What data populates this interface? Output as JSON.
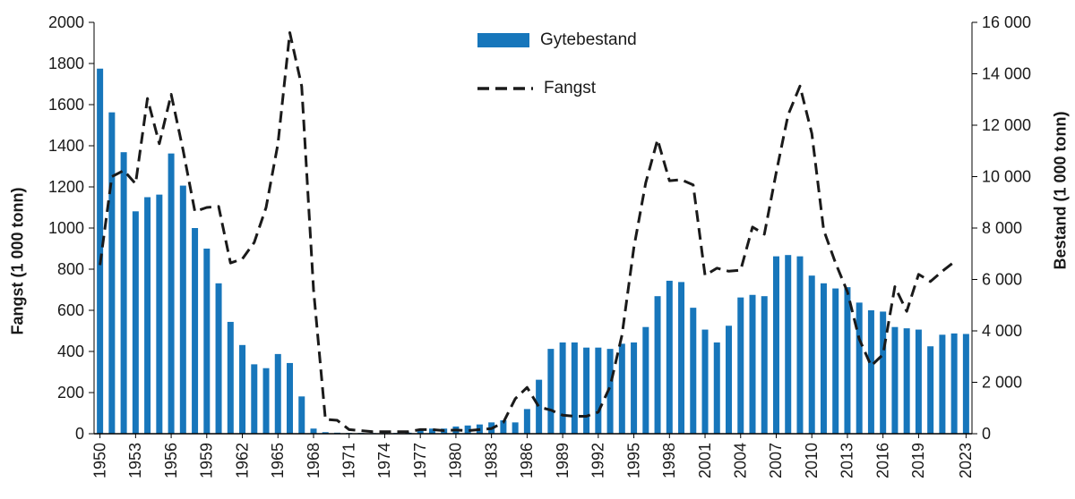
{
  "page": {
    "background": "#ffffff"
  },
  "chart_data": {
    "type": "bar+line",
    "title": "",
    "x_years": [
      1950,
      1951,
      1952,
      1953,
      1954,
      1955,
      1956,
      1957,
      1958,
      1959,
      1960,
      1961,
      1962,
      1963,
      1964,
      1965,
      1966,
      1967,
      1968,
      1969,
      1970,
      1971,
      1972,
      1973,
      1974,
      1975,
      1976,
      1977,
      1978,
      1979,
      1980,
      1981,
      1982,
      1983,
      1984,
      1985,
      1986,
      1987,
      1988,
      1989,
      1990,
      1991,
      1992,
      1993,
      1994,
      1995,
      1996,
      1997,
      1998,
      1999,
      2000,
      2001,
      2002,
      2003,
      2004,
      2005,
      2006,
      2007,
      2008,
      2009,
      2010,
      2011,
      2012,
      2013,
      2014,
      2015,
      2016,
      2017,
      2018,
      2019,
      2020,
      2021,
      2022,
      2023
    ],
    "series": [
      {
        "name": "Gytebestand",
        "type": "bar",
        "axis": "right",
        "color": "#1776bb",
        "values": [
          14200,
          12500,
          10950,
          8650,
          9200,
          9300,
          10900,
          9650,
          8000,
          7200,
          5850,
          4350,
          3450,
          2700,
          2550,
          3100,
          2750,
          1450,
          200,
          60,
          40,
          30,
          30,
          25,
          25,
          30,
          40,
          160,
          200,
          200,
          280,
          320,
          360,
          440,
          520,
          440,
          960,
          2100,
          3300,
          3550,
          3550,
          3350,
          3350,
          3300,
          3500,
          3550,
          4150,
          5350,
          5950,
          5900,
          4900,
          4050,
          3550,
          4200,
          5300,
          5400,
          5350,
          6900,
          6950,
          6900,
          6150,
          5850,
          5650,
          5700,
          5100,
          4800,
          4750,
          4150,
          4100,
          4050,
          3400,
          3850,
          3900,
          3880
        ]
      },
      {
        "name": "Fangst",
        "type": "line",
        "axis": "left",
        "color": "#1a1a1a",
        "dashed": true,
        "values": [
          820,
          1250,
          1280,
          1215,
          1630,
          1410,
          1650,
          1380,
          1080,
          1100,
          1105,
          830,
          850,
          930,
          1100,
          1410,
          1950,
          1690,
          700,
          70,
          65,
          20,
          15,
          10,
          10,
          10,
          10,
          20,
          20,
          15,
          18,
          15,
          20,
          25,
          55,
          170,
          225,
          130,
          115,
          90,
          85,
          85,
          105,
          230,
          480,
          905,
          1220,
          1430,
          1230,
          1235,
          1210,
          770,
          805,
          790,
          795,
          1005,
          970,
          1270,
          1550,
          1690,
          1460,
          990,
          830,
          690,
          460,
          330,
          385,
          715,
          595,
          775,
          740,
          790,
          835,
          null
        ]
      }
    ],
    "axes": {
      "left": {
        "label": "Fangst (1 000 tonn)",
        "min": 0,
        "max": 2000,
        "ticks": [
          0,
          200,
          400,
          600,
          800,
          1000,
          1200,
          1400,
          1600,
          1800,
          2000
        ],
        "tick_labels": [
          "0",
          "200",
          "400",
          "600",
          "800",
          "1000",
          "1200",
          "1400",
          "1600",
          "1800",
          "2000"
        ]
      },
      "right": {
        "label": "Bestand (1 000 tonn)",
        "min": 0,
        "max": 16000,
        "ticks": [
          0,
          2000,
          4000,
          6000,
          8000,
          10000,
          12000,
          14000,
          16000
        ],
        "tick_labels": [
          "0",
          "2 000",
          "4 000",
          "6 000",
          "8 000",
          "10 000",
          "12 000",
          "14 000",
          "16 000"
        ]
      },
      "x": {
        "labeled_years": [
          1950,
          1953,
          1956,
          1959,
          1962,
          1965,
          1968,
          1971,
          1974,
          1977,
          1980,
          1983,
          1986,
          1989,
          1992,
          1995,
          1998,
          2001,
          2004,
          2007,
          2010,
          2013,
          2016,
          2019,
          2023
        ]
      }
    },
    "legend": {
      "position": "top-center",
      "items": [
        "Gytebestand",
        "Fangst"
      ]
    }
  }
}
